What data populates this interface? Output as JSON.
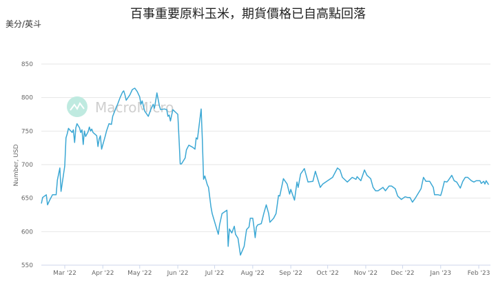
{
  "chart_data": {
    "type": "line",
    "title": "百事重要原料玉米，期貨價格已自高點回落",
    "unit_label": "美分/英斗",
    "ylabel": "Number, USD",
    "xlabel": "",
    "ylim": [
      550,
      850
    ],
    "yticks": [
      550,
      600,
      650,
      700,
      750,
      800,
      850
    ],
    "xticks": [
      {
        "date": "2022-03-01",
        "label": "Mar '22"
      },
      {
        "date": "2022-04-01",
        "label": "Apr '22"
      },
      {
        "date": "2022-05-01",
        "label": "May '22"
      },
      {
        "date": "2022-06-01",
        "label": "Jun '22"
      },
      {
        "date": "2022-07-01",
        "label": "Jul '22"
      },
      {
        "date": "2022-08-01",
        "label": "Aug '22"
      },
      {
        "date": "2022-09-01",
        "label": "Sep '22"
      },
      {
        "date": "2022-10-01",
        "label": "Oct '22"
      },
      {
        "date": "2022-11-01",
        "label": "Nov '22"
      },
      {
        "date": "2022-12-01",
        "label": "Dec '22"
      },
      {
        "date": "2023-01-01",
        "label": "Jan '23"
      },
      {
        "date": "2023-02-01",
        "label": "Feb '23"
      }
    ],
    "grid": true,
    "legend": "none",
    "watermark": "MacroMicro",
    "line_color": "#3aa7d4",
    "series": [
      {
        "points": [
          [
            "2022-02-10",
            642
          ],
          [
            "2022-02-11",
            651
          ],
          [
            "2022-02-14",
            655
          ],
          [
            "2022-02-15",
            640
          ],
          [
            "2022-02-17",
            648
          ],
          [
            "2022-02-19",
            655
          ],
          [
            "2022-02-22",
            655
          ],
          [
            "2022-02-23",
            677
          ],
          [
            "2022-02-25",
            695
          ],
          [
            "2022-02-26",
            660
          ],
          [
            "2022-03-01",
            698
          ],
          [
            "2022-03-02",
            740
          ],
          [
            "2022-03-03",
            746
          ],
          [
            "2022-03-04",
            754
          ],
          [
            "2022-03-05",
            752
          ],
          [
            "2022-03-07",
            748
          ],
          [
            "2022-03-08",
            752
          ],
          [
            "2022-03-09",
            733
          ],
          [
            "2022-03-10",
            755
          ],
          [
            "2022-03-11",
            761
          ],
          [
            "2022-03-13",
            755
          ],
          [
            "2022-03-14",
            748
          ],
          [
            "2022-03-15",
            752
          ],
          [
            "2022-03-16",
            730
          ],
          [
            "2022-03-17",
            750
          ],
          [
            "2022-03-18",
            742
          ],
          [
            "2022-03-20",
            749
          ],
          [
            "2022-03-21",
            756
          ],
          [
            "2022-03-22",
            750
          ],
          [
            "2022-03-23",
            753
          ],
          [
            "2022-03-24",
            748
          ],
          [
            "2022-03-27",
            743
          ],
          [
            "2022-03-28",
            727
          ],
          [
            "2022-03-29",
            738
          ],
          [
            "2022-03-30",
            743
          ],
          [
            "2022-03-31",
            723
          ],
          [
            "2022-04-03",
            743
          ],
          [
            "2022-04-04",
            750
          ],
          [
            "2022-04-06",
            761
          ],
          [
            "2022-04-08",
            760
          ],
          [
            "2022-04-09",
            772
          ],
          [
            "2022-04-12",
            786
          ],
          [
            "2022-04-13",
            790
          ],
          [
            "2022-04-15",
            800
          ],
          [
            "2022-04-17",
            808
          ],
          [
            "2022-04-18",
            810
          ],
          [
            "2022-04-19",
            804
          ],
          [
            "2022-04-20",
            796
          ],
          [
            "2022-04-23",
            804
          ],
          [
            "2022-04-25",
            812
          ],
          [
            "2022-04-27",
            814
          ],
          [
            "2022-04-29",
            809
          ],
          [
            "2022-05-01",
            801
          ],
          [
            "2022-05-02",
            790
          ],
          [
            "2022-05-03",
            795
          ],
          [
            "2022-05-05",
            780
          ],
          [
            "2022-05-08",
            772
          ],
          [
            "2022-05-10",
            782
          ],
          [
            "2022-05-12",
            790
          ],
          [
            "2022-05-13",
            784
          ],
          [
            "2022-05-15",
            807
          ],
          [
            "2022-05-17",
            788
          ],
          [
            "2022-05-18",
            782
          ],
          [
            "2022-05-21",
            783
          ],
          [
            "2022-05-23",
            782
          ],
          [
            "2022-05-24",
            772
          ],
          [
            "2022-05-25",
            774
          ],
          [
            "2022-05-26",
            765
          ],
          [
            "2022-05-28",
            782
          ],
          [
            "2022-06-01",
            775
          ],
          [
            "2022-06-02",
            738
          ],
          [
            "2022-06-03",
            701
          ],
          [
            "2022-06-04",
            701
          ],
          [
            "2022-06-05",
            704
          ],
          [
            "2022-06-07",
            710
          ],
          [
            "2022-06-08",
            722
          ],
          [
            "2022-06-10",
            729
          ],
          [
            "2022-06-13",
            726
          ],
          [
            "2022-06-15",
            723
          ],
          [
            "2022-06-16",
            740
          ],
          [
            "2022-06-17",
            738
          ],
          [
            "2022-06-20",
            783
          ],
          [
            "2022-06-21",
            738
          ],
          [
            "2022-06-22",
            678
          ],
          [
            "2022-06-23",
            683
          ],
          [
            "2022-06-25",
            670
          ],
          [
            "2022-06-26",
            666
          ],
          [
            "2022-06-28",
            637
          ],
          [
            "2022-06-29",
            627
          ],
          [
            "2022-07-04",
            596
          ],
          [
            "2022-07-05",
            610
          ],
          [
            "2022-07-07",
            627
          ],
          [
            "2022-07-11",
            632
          ],
          [
            "2022-07-12",
            578
          ],
          [
            "2022-07-13",
            604
          ],
          [
            "2022-07-15",
            598
          ],
          [
            "2022-07-17",
            608
          ],
          [
            "2022-07-18",
            596
          ],
          [
            "2022-07-20",
            590
          ],
          [
            "2022-07-22",
            565
          ],
          [
            "2022-07-25",
            578
          ],
          [
            "2022-07-27",
            603
          ],
          [
            "2022-07-29",
            607
          ],
          [
            "2022-07-30",
            620
          ],
          [
            "2022-08-01",
            620
          ],
          [
            "2022-08-02",
            607
          ],
          [
            "2022-08-03",
            591
          ],
          [
            "2022-08-04",
            607
          ],
          [
            "2022-08-05",
            610
          ],
          [
            "2022-08-08",
            612
          ],
          [
            "2022-08-10",
            627
          ],
          [
            "2022-08-12",
            640
          ],
          [
            "2022-08-14",
            627
          ],
          [
            "2022-08-15",
            614
          ],
          [
            "2022-08-18",
            620
          ],
          [
            "2022-08-20",
            627
          ],
          [
            "2022-08-22",
            654
          ],
          [
            "2022-08-23",
            653
          ],
          [
            "2022-08-26",
            679
          ],
          [
            "2022-08-29",
            671
          ],
          [
            "2022-08-31",
            656
          ],
          [
            "2022-09-01",
            663
          ],
          [
            "2022-09-04",
            647
          ],
          [
            "2022-09-06",
            674
          ],
          [
            "2022-09-07",
            666
          ],
          [
            "2022-09-09",
            686
          ],
          [
            "2022-09-12",
            694
          ],
          [
            "2022-09-15",
            674
          ],
          [
            "2022-09-19",
            675
          ],
          [
            "2022-09-21",
            690
          ],
          [
            "2022-09-22",
            684
          ],
          [
            "2022-09-25",
            666
          ],
          [
            "2022-09-27",
            671
          ],
          [
            "2022-10-01",
            676
          ],
          [
            "2022-10-05",
            681
          ],
          [
            "2022-10-09",
            695
          ],
          [
            "2022-10-11",
            692
          ],
          [
            "2022-10-13",
            681
          ],
          [
            "2022-10-17",
            674
          ],
          [
            "2022-10-21",
            681
          ],
          [
            "2022-10-24",
            678
          ],
          [
            "2022-10-25",
            682
          ],
          [
            "2022-10-28",
            676
          ],
          [
            "2022-10-31",
            692
          ],
          [
            "2022-11-02",
            684
          ],
          [
            "2022-11-05",
            679
          ],
          [
            "2022-11-07",
            666
          ],
          [
            "2022-11-09",
            661
          ],
          [
            "2022-11-11",
            661
          ],
          [
            "2022-11-15",
            666
          ],
          [
            "2022-11-17",
            661
          ],
          [
            "2022-11-20",
            668
          ],
          [
            "2022-11-22",
            668
          ],
          [
            "2022-11-25",
            664
          ],
          [
            "2022-11-27",
            653
          ],
          [
            "2022-11-30",
            648
          ],
          [
            "2022-12-03",
            652
          ],
          [
            "2022-12-05",
            651
          ],
          [
            "2022-12-07",
            651
          ],
          [
            "2022-12-09",
            644
          ],
          [
            "2022-12-11",
            649
          ],
          [
            "2022-12-14",
            658
          ],
          [
            "2022-12-16",
            664
          ],
          [
            "2022-12-18",
            681
          ],
          [
            "2022-12-20",
            675
          ],
          [
            "2022-12-23",
            675
          ],
          [
            "2022-12-26",
            666
          ],
          [
            "2022-12-27",
            655
          ],
          [
            "2022-12-30",
            655
          ],
          [
            "2023-01-01",
            654
          ],
          [
            "2023-01-02",
            660
          ],
          [
            "2023-01-04",
            675
          ],
          [
            "2023-01-06",
            674
          ],
          [
            "2023-01-07",
            676
          ],
          [
            "2023-01-10",
            684
          ],
          [
            "2023-01-12",
            676
          ],
          [
            "2023-01-14",
            674
          ],
          [
            "2023-01-17",
            665
          ],
          [
            "2023-01-19",
            675
          ],
          [
            "2023-01-21",
            681
          ],
          [
            "2023-01-23",
            681
          ],
          [
            "2023-01-26",
            676
          ],
          [
            "2023-01-28",
            674
          ],
          [
            "2023-01-30",
            676
          ],
          [
            "2023-02-02",
            676
          ],
          [
            "2023-02-03",
            672
          ],
          [
            "2023-02-05",
            675
          ],
          [
            "2023-02-06",
            671
          ],
          [
            "2023-02-07",
            676
          ],
          [
            "2023-02-09",
            670
          ]
        ]
      }
    ]
  }
}
